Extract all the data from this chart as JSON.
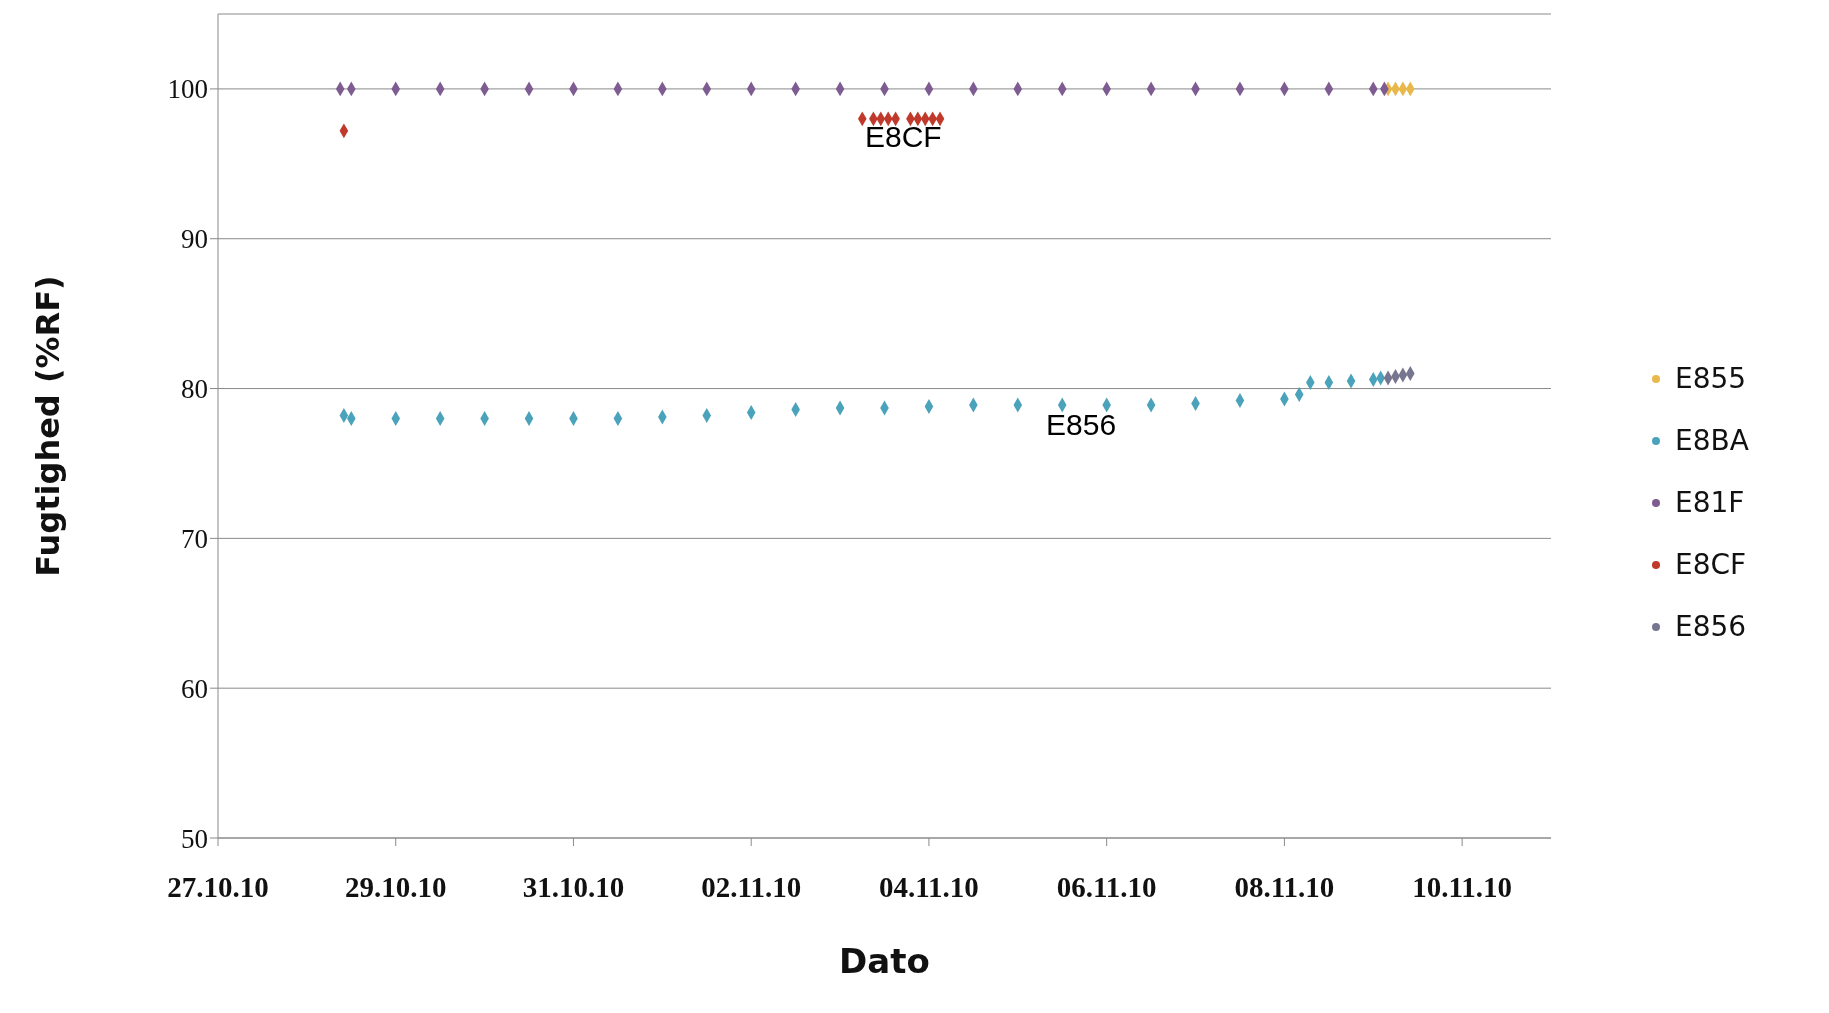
{
  "chart_data": {
    "type": "scatter",
    "xlabel": "Dato",
    "ylabel": "Fugtighed (%RF)",
    "xlim": [
      "--10-27",
      "--11-11"
    ],
    "xticks": [
      {
        "value": "--10-27",
        "label": "27.10.10"
      },
      {
        "value": "--10-29",
        "label": "29.10.10"
      },
      {
        "value": "--10-31",
        "label": "31.10.10"
      },
      {
        "value": "--11-02",
        "label": "02.11.10"
      },
      {
        "value": "--11-04",
        "label": "04.11.10"
      },
      {
        "value": "--11-06",
        "label": "06.11.10"
      },
      {
        "value": "--11-08",
        "label": "08.11.10"
      },
      {
        "value": "--11-10",
        "label": "10.11.10"
      }
    ],
    "ylim": [
      50,
      105
    ],
    "yticks": [
      50,
      60,
      70,
      80,
      90,
      100
    ],
    "grid": "y",
    "legend": "right",
    "marker": "diamond",
    "series": [
      {
        "name": "E855",
        "color": "#e8b84a",
        "x": [
          "--11-09T04:00",
          "--11-09T06:00",
          "--11-09T08:00",
          "--11-09T10:00"
        ],
        "values": [
          100,
          100,
          100,
          100
        ]
      },
      {
        "name": "E8BA",
        "color": "#4ba2bb",
        "x": [
          "--10-28T10:00",
          "--10-28T12:00",
          "--10-29T00:00",
          "--10-29T12:00",
          "--10-30T00:00",
          "--10-30T12:00",
          "--10-31T00:00",
          "--10-31T12:00",
          "--11-01T00:00",
          "--11-01T12:00",
          "--11-02T00:00",
          "--11-02T12:00",
          "--11-03T00:00",
          "--11-03T12:00",
          "--11-04T00:00",
          "--11-04T12:00",
          "--11-05T00:00",
          "--11-05T12:00",
          "--11-06T00:00",
          "--11-06T12:00",
          "--11-07T00:00",
          "--11-07T12:00",
          "--11-08T00:00",
          "--11-08T04:00",
          "--11-08T07:00",
          "--11-08T12:00",
          "--11-08T18:00",
          "--11-09T00:00",
          "--11-09T02:00"
        ],
        "values": [
          78.2,
          78.0,
          78.0,
          78.0,
          78.0,
          78.0,
          78.0,
          78.0,
          78.1,
          78.2,
          78.4,
          78.6,
          78.7,
          78.7,
          78.8,
          78.9,
          78.9,
          78.9,
          78.9,
          78.9,
          79.0,
          79.2,
          79.3,
          79.6,
          80.4,
          80.4,
          80.5,
          80.6,
          80.7
        ]
      },
      {
        "name": "E81F",
        "color": "#7e5c92",
        "x": [
          "--10-28T09:00",
          "--10-28T12:00",
          "--10-29T00:00",
          "--10-29T12:00",
          "--10-30T00:00",
          "--10-30T12:00",
          "--10-31T00:00",
          "--10-31T12:00",
          "--11-01T00:00",
          "--11-01T12:00",
          "--11-02T00:00",
          "--11-02T12:00",
          "--11-03T00:00",
          "--11-03T12:00",
          "--11-04T00:00",
          "--11-04T12:00",
          "--11-05T00:00",
          "--11-05T12:00",
          "--11-06T00:00",
          "--11-06T12:00",
          "--11-07T00:00",
          "--11-07T12:00",
          "--11-08T00:00",
          "--11-08T12:00",
          "--11-09T00:00",
          "--11-09T03:00"
        ],
        "values": [
          100,
          100,
          100,
          100,
          100,
          100,
          100,
          100,
          100,
          100,
          100,
          100,
          100,
          100,
          100,
          100,
          100,
          100,
          100,
          100,
          100,
          100,
          100,
          100,
          100,
          100
        ]
      },
      {
        "name": "E8CF",
        "color": "#c0392b",
        "x": [
          "--10-28T10:00",
          "--11-03T06:00",
          "--11-03T09:00",
          "--11-03T11:00",
          "--11-03T13:00",
          "--11-03T15:00",
          "--11-03T19:00",
          "--11-03T21:00",
          "--11-03T23:00",
          "--11-04T01:00",
          "--11-04T03:00"
        ],
        "values": [
          97.2,
          98,
          98,
          98,
          98,
          98,
          98,
          98,
          98,
          98,
          98
        ]
      },
      {
        "name": "E856",
        "color": "#767690",
        "x": [
          "--11-09T04:00",
          "--11-09T06:00",
          "--11-09T08:00",
          "--11-09T10:00"
        ],
        "values": [
          80.7,
          80.8,
          80.9,
          81.0
        ]
      }
    ],
    "annotations": [
      "E8CF",
      "E856"
    ]
  }
}
